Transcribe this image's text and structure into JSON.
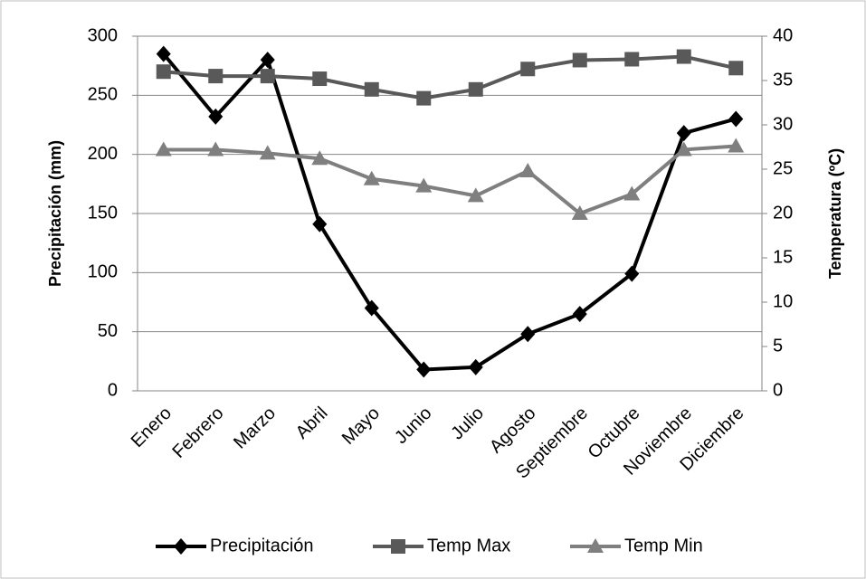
{
  "chart_data": {
    "type": "line",
    "categories": [
      "Enero",
      "Febrero",
      "Marzo",
      "Abril",
      "Mayo",
      "Junio",
      "Julio",
      "Agosto",
      "Septiembre",
      "Octubre",
      "Noviembre",
      "Diciembre"
    ],
    "y_label": "Precipitación (mm)",
    "y2_label": "Temperatura (ºC)",
    "ylim": [
      0,
      300
    ],
    "yticks": [
      0,
      50,
      100,
      150,
      200,
      250,
      300
    ],
    "y2lim": [
      0,
      40
    ],
    "y2ticks": [
      0,
      5,
      10,
      15,
      20,
      25,
      30,
      35,
      40
    ],
    "grid": true,
    "legend": "bottom",
    "series": [
      {
        "name": "Precipitación",
        "color": "#000000",
        "marker": "diamond",
        "values": [
          285,
          232,
          280,
          141,
          70,
          18,
          20,
          48,
          65,
          99,
          218,
          230
        ]
      },
      {
        "name": "Temp Max",
        "color": "#595959",
        "marker": "square",
        "axis": "y2",
        "values": [
          36,
          35.5,
          35.5,
          35.2,
          34,
          33,
          34,
          36.3,
          37.3,
          37.4,
          37.7,
          36.4
        ]
      },
      {
        "name": "Temp Min",
        "color": "#7f7f7f",
        "marker": "triangle",
        "axis": "y2",
        "values": [
          27.2,
          27.2,
          26.8,
          26.2,
          23.9,
          23.1,
          22,
          24.8,
          20,
          22.2,
          27.2,
          27.6
        ]
      }
    ]
  }
}
